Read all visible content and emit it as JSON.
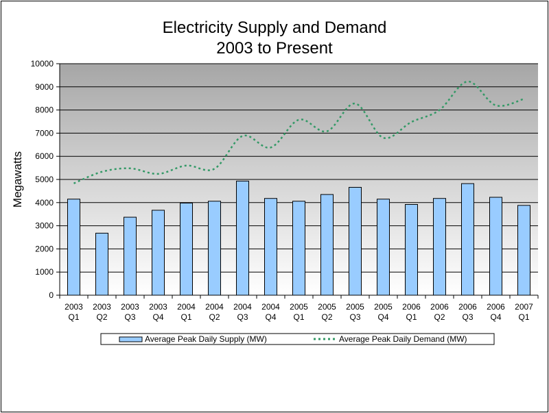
{
  "chart_data": {
    "type": "bar",
    "title": "Electricity Supply and Demand",
    "subtitle": "2003 to Present",
    "xlabel": "",
    "ylabel": "Megawatts",
    "ylim": [
      0,
      10000
    ],
    "yticks": [
      0,
      1000,
      2000,
      3000,
      4000,
      5000,
      6000,
      7000,
      8000,
      9000,
      10000
    ],
    "grid": true,
    "legend": "bottom",
    "categories": [
      [
        "2003",
        "Q1"
      ],
      [
        "2003",
        "Q2"
      ],
      [
        "2003",
        "Q3"
      ],
      [
        "2003",
        "Q4"
      ],
      [
        "2004",
        "Q1"
      ],
      [
        "2004",
        "Q2"
      ],
      [
        "2004",
        "Q3"
      ],
      [
        "2004",
        "Q4"
      ],
      [
        "2005",
        "Q1"
      ],
      [
        "2005",
        "Q2"
      ],
      [
        "2005",
        "Q3"
      ],
      [
        "2005",
        "Q4"
      ],
      [
        "2006",
        "Q1"
      ],
      [
        "2006",
        "Q2"
      ],
      [
        "2006",
        "Q3"
      ],
      [
        "2006",
        "Q4"
      ],
      [
        "2007",
        "Q1"
      ]
    ],
    "series": [
      {
        "name": "Average Peak Daily Supply (MW)",
        "kind": "bar",
        "color": "#99ccff",
        "values": [
          4150,
          2680,
          3370,
          3670,
          3980,
          4060,
          4930,
          4180,
          4060,
          4350,
          4660,
          4150,
          3920,
          4180,
          4820,
          4230,
          3880
        ]
      },
      {
        "name": "Average Peak Daily Demand (MW)",
        "kind": "line",
        "style": "dotted",
        "color": "#339966",
        "values": [
          4830,
          5330,
          5480,
          5240,
          5600,
          5460,
          6880,
          6380,
          7580,
          7080,
          8280,
          6800,
          7480,
          8000,
          9230,
          8200,
          8480
        ]
      }
    ]
  }
}
